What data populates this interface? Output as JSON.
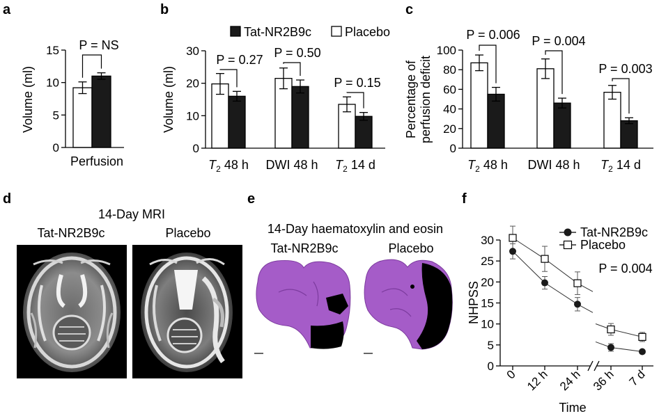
{
  "panels": {
    "a": {
      "letter": "a",
      "ylabel": "Volume (ml)",
      "category": "Perfusion",
      "p_text": "P = NS"
    },
    "b": {
      "letter": "b",
      "ylabel": "Volume (ml)",
      "legend": [
        "Tat-NR2B9c",
        "Placebo"
      ],
      "p_texts": [
        "P = 0.27",
        "P = 0.50",
        "P = 0.15"
      ]
    },
    "c": {
      "letter": "c",
      "ylabel_line1": "Percentage of",
      "ylabel_line2": "perfusion deficit",
      "p_texts": [
        "P = 0.006",
        "P = 0.004",
        "P = 0.003"
      ]
    },
    "d": {
      "letter": "d",
      "title": "14-Day MRI",
      "labels": [
        "Tat-NR2B9c",
        "Placebo"
      ]
    },
    "e": {
      "letter": "e",
      "title": "14-Day haematoxylin and eosin",
      "labels": [
        "Tat-NR2B9c",
        "Placebo"
      ]
    },
    "f": {
      "letter": "f",
      "ylabel": "NHPSS",
      "xlabel": "Time",
      "p_text": "P = 0.004",
      "legend": [
        "Tat-NR2B9c",
        "Placebo"
      ]
    }
  },
  "colors": {
    "tat": "#1a1a1a",
    "placebo": "#ffffff",
    "he_stain": "#a55cc8",
    "infarct": "#000000"
  },
  "chart_data": [
    {
      "panel": "a",
      "type": "bar",
      "categories": [
        "Perfusion"
      ],
      "series": [
        {
          "name": "Placebo",
          "values": [
            9.2
          ],
          "err": [
            0.9
          ]
        },
        {
          "name": "Tat-NR2B9c",
          "values": [
            11.0
          ],
          "err": [
            0.5
          ]
        }
      ],
      "ylim": [
        0,
        15
      ],
      "yticks": [
        0,
        5,
        10,
        15
      ]
    },
    {
      "panel": "b",
      "type": "bar",
      "categories": [
        "T2 48 h",
        "DWI 48 h",
        "T2 14 d"
      ],
      "series": [
        {
          "name": "Placebo",
          "values": [
            19.8,
            21.5,
            13.5
          ],
          "err": [
            3.2,
            3.2,
            2.3
          ]
        },
        {
          "name": "Tat-NR2B9c",
          "values": [
            16.0,
            19.0,
            9.8
          ],
          "err": [
            1.5,
            2.0,
            1.2
          ]
        }
      ],
      "ylim": [
        0,
        30
      ],
      "yticks": [
        0,
        10,
        20,
        30
      ]
    },
    {
      "panel": "c",
      "type": "bar",
      "categories": [
        "T2 48 h",
        "DWI 48 h",
        "T2 14 d"
      ],
      "series": [
        {
          "name": "Placebo",
          "values": [
            87,
            81,
            57
          ],
          "err": [
            8,
            10,
            7
          ]
        },
        {
          "name": "Tat-NR2B9c",
          "values": [
            55,
            46,
            28
          ],
          "err": [
            7,
            5,
            3
          ]
        }
      ],
      "ylim": [
        0,
        100
      ],
      "yticks": [
        0,
        20,
        40,
        60,
        80,
        100
      ]
    },
    {
      "panel": "f",
      "type": "line",
      "x": [
        "0",
        "12 h",
        "24 h",
        "36 h",
        "7 d"
      ],
      "series": [
        {
          "name": "Tat-NR2B9c",
          "values": [
            27.3,
            19.8,
            14.7,
            4.4,
            3.4
          ],
          "err": [
            1.8,
            1.5,
            1.6,
            0.9,
            0.4
          ]
        },
        {
          "name": "Placebo",
          "values": [
            30.5,
            25.5,
            19.7,
            8.7,
            6.9
          ],
          "err": [
            2.8,
            3.0,
            2.7,
            1.4,
            1.1
          ]
        }
      ],
      "ylim": [
        0,
        30
      ],
      "yticks": [
        0,
        5,
        10,
        15,
        20,
        25,
        30
      ],
      "axis_break": true
    }
  ]
}
